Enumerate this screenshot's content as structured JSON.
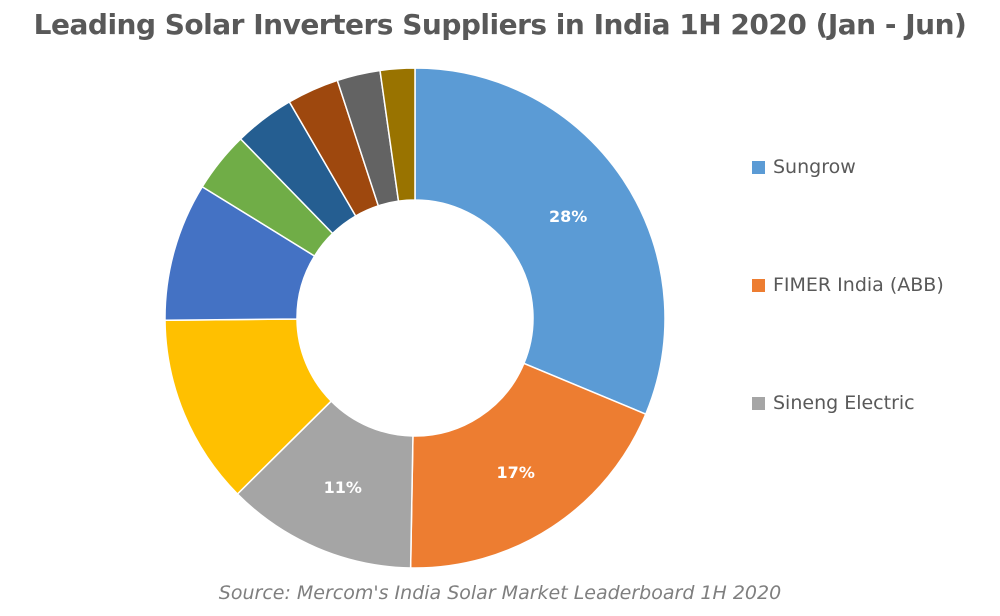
{
  "chart_data": {
    "type": "pie",
    "donut": true,
    "title": "Leading Solar Inverters Suppliers in India 1H 2020 (Jan - Jun)",
    "source": "Source: Mercom's India Solar Market Leaderboard 1H 2020",
    "legend_position": "right",
    "slices": [
      {
        "name": "Sungrow",
        "value": 28,
        "label": "28%",
        "color": "#5B9BD5",
        "in_legend": true
      },
      {
        "name": "FIMER India (ABB)",
        "value": 17,
        "label": "17%",
        "color": "#ED7D31",
        "in_legend": true
      },
      {
        "name": "Sineng Electric",
        "value": 11,
        "label": "11%",
        "color": "#A5A5A5",
        "in_legend": true
      },
      {
        "value": 11,
        "color": "#FFC000"
      },
      {
        "value": 8,
        "color": "#4472C4"
      },
      {
        "value": 3.5,
        "color": "#70AD47"
      },
      {
        "value": 3.5,
        "color": "#255E91"
      },
      {
        "value": 3,
        "color": "#9E480E"
      },
      {
        "value": 2.5,
        "color": "#636363"
      },
      {
        "value": 2,
        "color": "#997300"
      }
    ]
  }
}
